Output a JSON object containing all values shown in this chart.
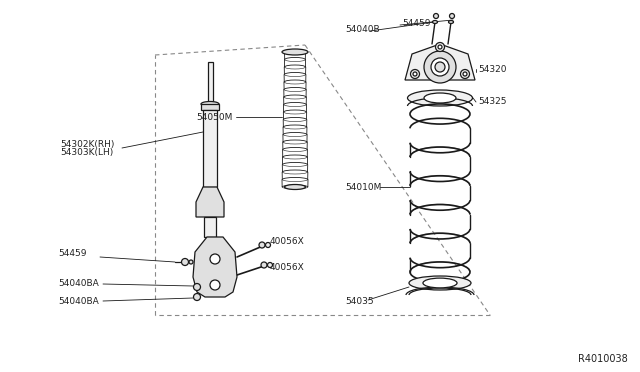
{
  "bg_color": "#ffffff",
  "line_color": "#1a1a1a",
  "part_fill": "#f0f0f0",
  "part_fill2": "#e0e0e0",
  "dash_color": "#888888",
  "text_color": "#222222",
  "diagram_id": "R4010038",
  "labels": {
    "54302K_RH": "54302K(RH)",
    "54303K_LH": "54303K(LH)",
    "54459_lower": "54459",
    "54040BA_1": "54040BA",
    "54040BA_2": "54040BA",
    "40056X_1": "40056X",
    "40056X_2": "40056X",
    "54050M": "54050M",
    "54040B": "54040B",
    "54459_upper": "54459",
    "54320": "54320",
    "54325": "54325",
    "54010M": "54010M",
    "54035": "54035"
  },
  "font_size": 6.5
}
